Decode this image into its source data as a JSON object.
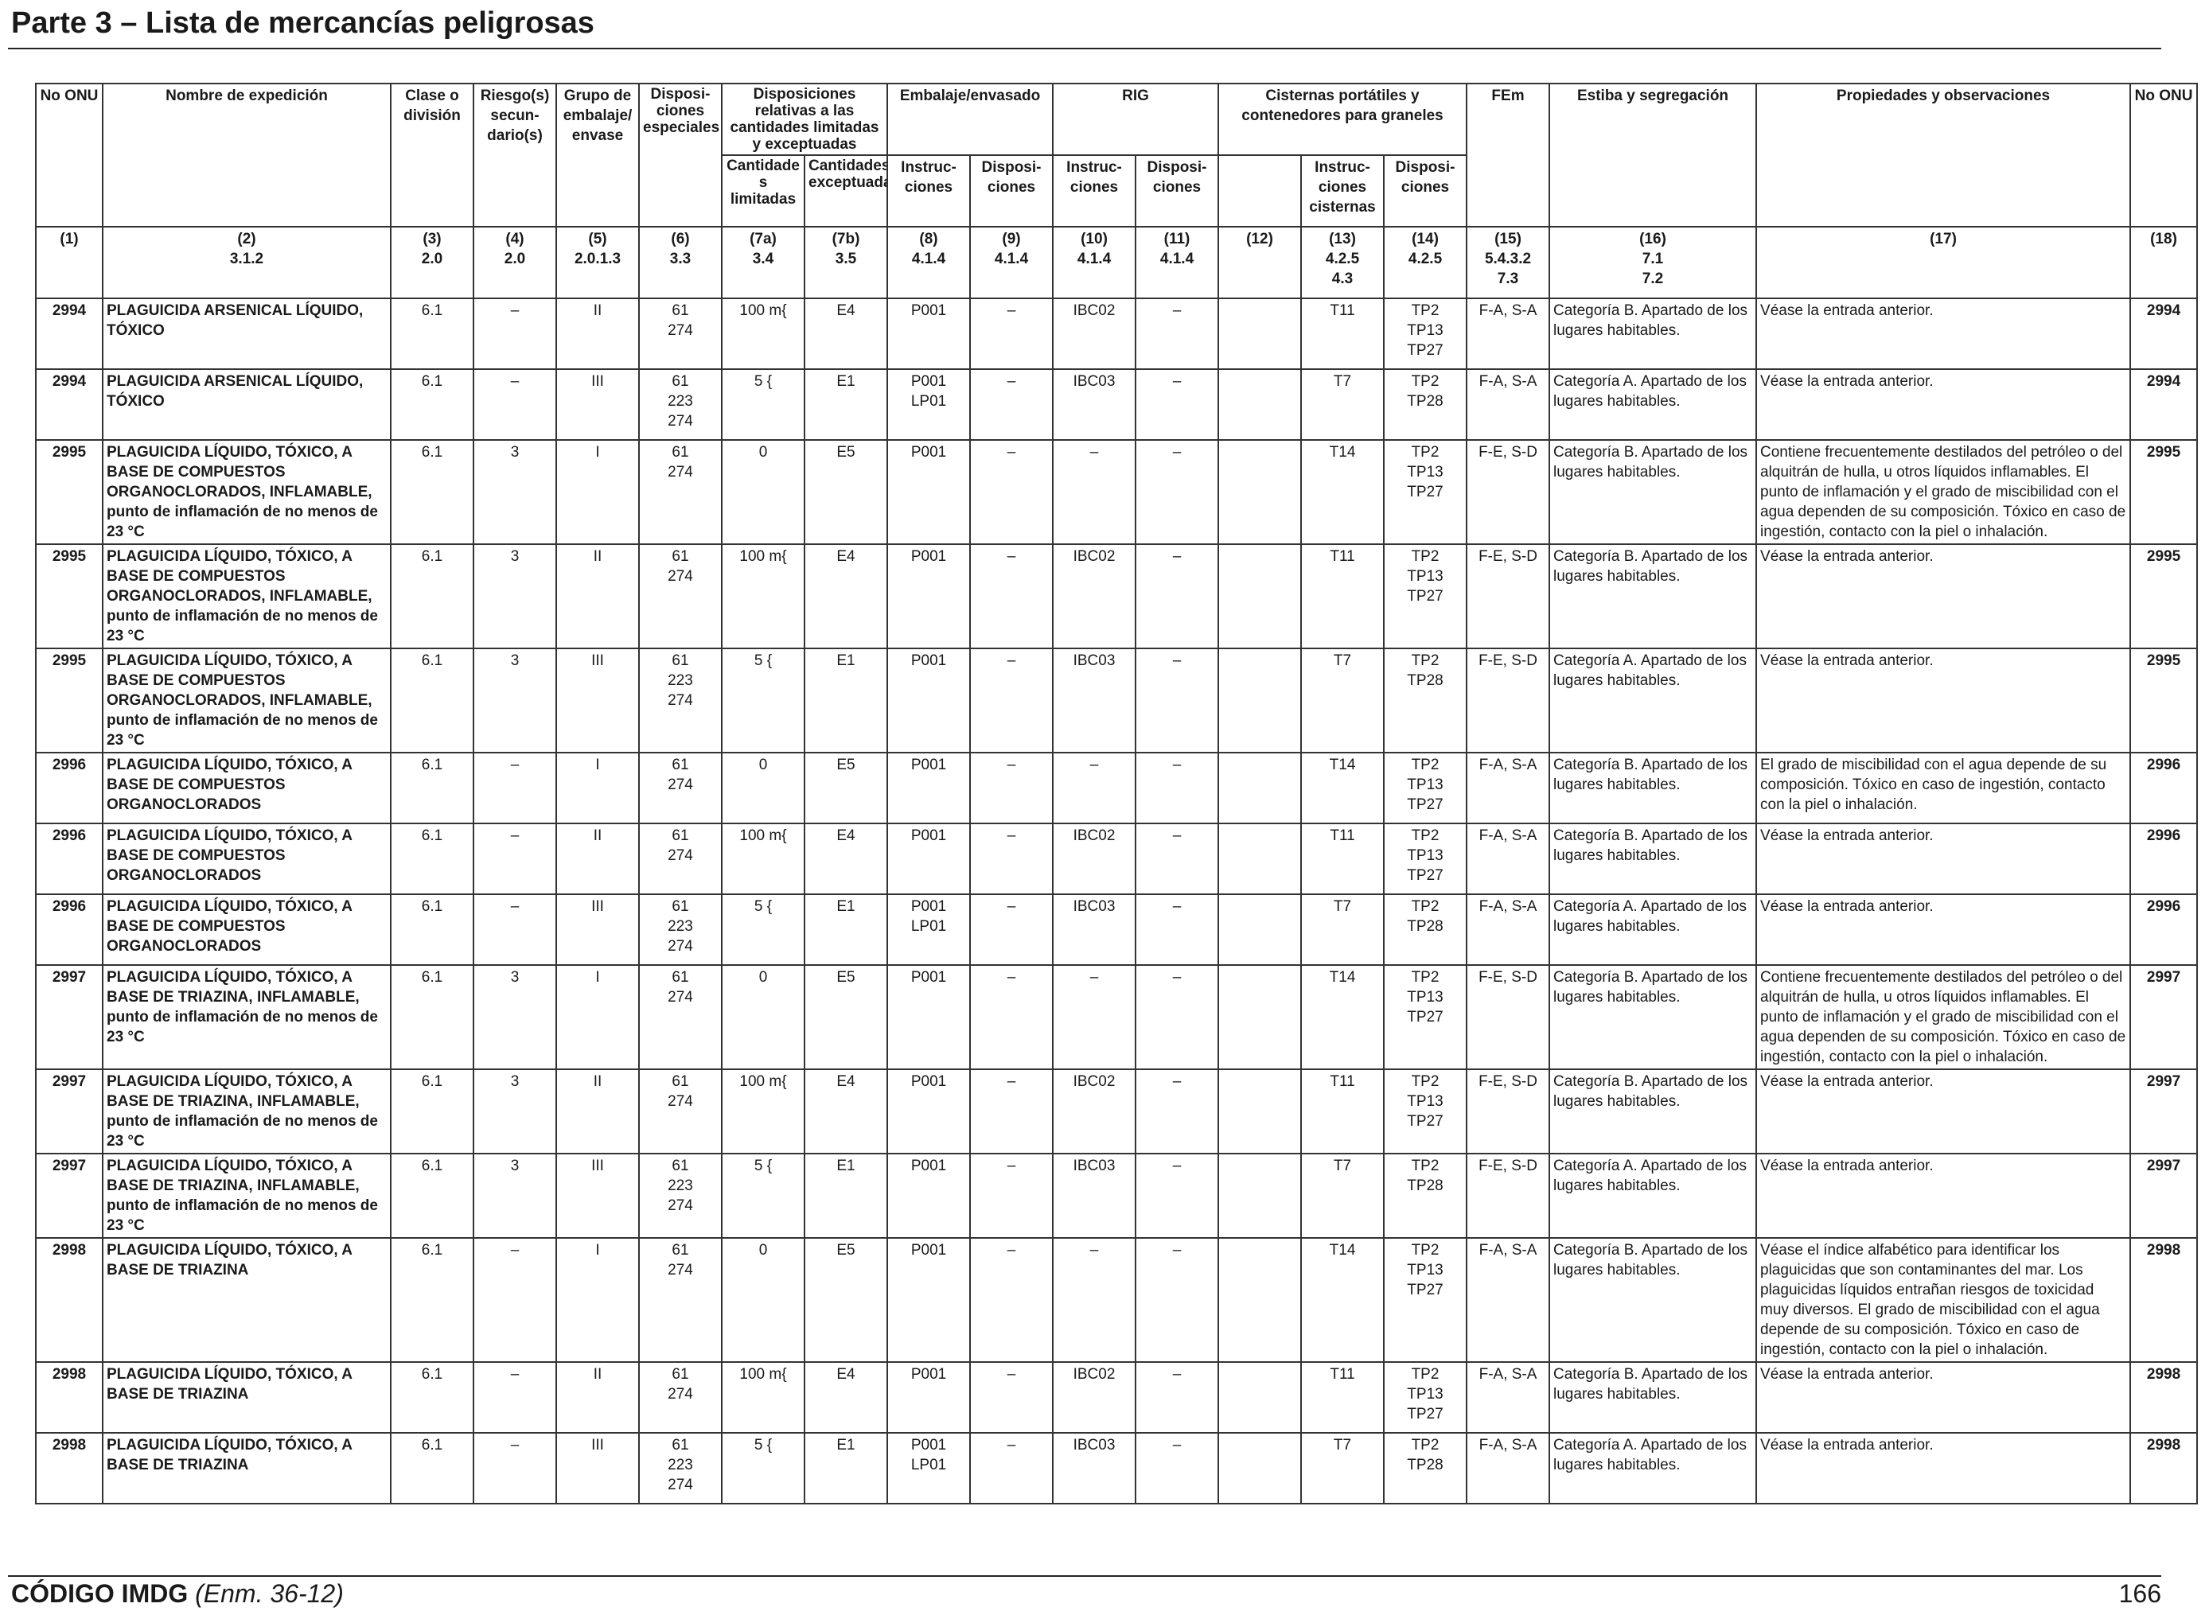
{
  "header": {
    "title": "Parte 3 – Lista de mercancías peligrosas"
  },
  "footer": {
    "code": "CÓDIGO IMDG",
    "edition": "(Enm. 36-12)",
    "page_number": "166"
  },
  "columns": {
    "no_onu": "No ONU",
    "nombre": "Nombre de expedición",
    "clase": "Clase o división",
    "riesgo": "Riesgo(s) secun- dario(s)",
    "grupo": "Grupo de embalaje/ envase",
    "dispos": "Disposi- ciones especiales",
    "cantidades": "Disposiciones relativas a las cantidades limitadas y exceptuadas",
    "cant_lim": "Cantidade s limitadas",
    "cant_exc": "Cantidades exceptuadas",
    "embalaje": "Embalaje/envasado",
    "emb_instr": "Instruc- ciones",
    "emb_dispos": "Disposi- ciones",
    "rig": "RIG",
    "rig_instr": "Instruc- ciones",
    "rig_dispos": "Disposi- ciones",
    "cisternas": "Cisternas portátiles y contenedores para graneles",
    "cist_instr": "Instruc- ciones cisternas",
    "cist_dispos": "Disposi- ciones",
    "fem": "FEm",
    "estiba": "Estiba y segregación",
    "propiedades": "Propiedades y observaciones",
    "no_onu_right": "No ONU"
  },
  "column_numbers": [
    [
      "(1)"
    ],
    [
      "(2)",
      "3.1.2"
    ],
    [
      "(3)",
      "2.0"
    ],
    [
      "(4)",
      "2.0"
    ],
    [
      "(5)",
      "2.0.1.3"
    ],
    [
      "(6)",
      "3.3"
    ],
    [
      "(7a)",
      "3.4"
    ],
    [
      "(7b)",
      "3.5"
    ],
    [
      "(8)",
      "4.1.4"
    ],
    [
      "(9)",
      "4.1.4"
    ],
    [
      "(10)",
      "4.1.4"
    ],
    [
      "(11)",
      "4.1.4"
    ],
    [
      "(12)"
    ],
    [
      "(13)",
      "4.2.5",
      "4.3"
    ],
    [
      "(14)",
      "4.2.5"
    ],
    [
      "(15)",
      "5.4.3.2",
      "7.3"
    ],
    [
      "(16)",
      "7.1",
      "7.2"
    ],
    [
      "(17)"
    ],
    [
      "(18)"
    ]
  ],
  "rows": [
    {
      "un": "2994",
      "name": "PLAGUICIDA ARSENICAL LÍQUIDO, TÓXICO",
      "cls": "6.1",
      "risk": "–",
      "pg": "II",
      "sp": [
        "61",
        "274"
      ],
      "lq": "100 m{",
      "eq": "E4",
      "pi": [
        "P001"
      ],
      "pp": "–",
      "ibc": "IBC02",
      "ibcp": "–",
      "c12": "",
      "tank": "T11",
      "tp": [
        "TP2",
        "TP13",
        "TP27"
      ],
      "fem": "F-A, S-A",
      "stow": "Categoría B. Apartado de los lugares habitables.",
      "prop": "Véase la entrada anterior.",
      "un2": "2994"
    },
    {
      "un": "2994",
      "name": "PLAGUICIDA ARSENICAL LÍQUIDO, TÓXICO",
      "cls": "6.1",
      "risk": "–",
      "pg": "III",
      "sp": [
        "61",
        "223",
        "274"
      ],
      "lq": "5 {",
      "eq": "E1",
      "pi": [
        "P001",
        "LP01"
      ],
      "pp": "–",
      "ibc": "IBC03",
      "ibcp": "–",
      "c12": "",
      "tank": "T7",
      "tp": [
        "TP2",
        "TP28"
      ],
      "fem": "F-A, S-A",
      "stow": "Categoría A. Apartado de los lugares habitables.",
      "prop": "Véase la entrada anterior.",
      "un2": "2994"
    },
    {
      "un": "2995",
      "name": "PLAGUICIDA LÍQUIDO, TÓXICO, A BASE DE COMPUESTOS ORGANOCLORADOS, INFLAMABLE, punto de inflamación de no menos de 23 °C",
      "cls": "6.1",
      "risk": "3",
      "pg": "I",
      "sp": [
        "61",
        "274"
      ],
      "lq": "0",
      "eq": "E5",
      "pi": [
        "P001"
      ],
      "pp": "–",
      "ibc": "–",
      "ibcp": "–",
      "c12": "",
      "tank": "T14",
      "tp": [
        "TP2",
        "TP13",
        "TP27"
      ],
      "fem": "F-E, S-D",
      "stow": "Categoría B. Apartado de los lugares habitables.",
      "prop": "Contiene frecuentemente destilados del petróleo o del alquitrán de hulla, u otros líquidos inflamables. El punto de inflamación y el grado de miscibilidad con el agua dependen de su composición. Tóxico en caso de ingestión, contacto con la piel o inhalación.",
      "un2": "2995"
    },
    {
      "un": "2995",
      "name": "PLAGUICIDA LÍQUIDO, TÓXICO, A BASE DE COMPUESTOS ORGANOCLORADOS, INFLAMABLE, punto de inflamación de no menos de 23 °C",
      "cls": "6.1",
      "risk": "3",
      "pg": "II",
      "sp": [
        "61",
        "274"
      ],
      "lq": "100 m{",
      "eq": "E4",
      "pi": [
        "P001"
      ],
      "pp": "–",
      "ibc": "IBC02",
      "ibcp": "–",
      "c12": "",
      "tank": "T11",
      "tp": [
        "TP2",
        "TP13",
        "TP27"
      ],
      "fem": "F-E, S-D",
      "stow": "Categoría B. Apartado de los lugares habitables.",
      "prop": "Véase la entrada anterior.",
      "un2": "2995"
    },
    {
      "un": "2995",
      "name": "PLAGUICIDA LÍQUIDO, TÓXICO, A BASE DE COMPUESTOS ORGANOCLORADOS, INFLAMABLE, punto de inflamación de no menos de 23 °C",
      "cls": "6.1",
      "risk": "3",
      "pg": "III",
      "sp": [
        "61",
        "223",
        "274"
      ],
      "lq": "5 {",
      "eq": "E1",
      "pi": [
        "P001"
      ],
      "pp": "–",
      "ibc": "IBC03",
      "ibcp": "–",
      "c12": "",
      "tank": "T7",
      "tp": [
        "TP2",
        "TP28"
      ],
      "fem": "F-E, S-D",
      "stow": "Categoría A. Apartado de los lugares habitables.",
      "prop": "Véase la entrada anterior.",
      "un2": "2995"
    },
    {
      "un": "2996",
      "name": "PLAGUICIDA LÍQUIDO, TÓXICO, A BASE DE COMPUESTOS ORGANOCLORADOS",
      "cls": "6.1",
      "risk": "–",
      "pg": "I",
      "sp": [
        "61",
        "274"
      ],
      "lq": "0",
      "eq": "E5",
      "pi": [
        "P001"
      ],
      "pp": "–",
      "ibc": "–",
      "ibcp": "–",
      "c12": "",
      "tank": "T14",
      "tp": [
        "TP2",
        "TP13",
        "TP27"
      ],
      "fem": "F-A, S-A",
      "stow": "Categoría B. Apartado de los lugares habitables.",
      "prop": "El grado de miscibilidad con el agua depende de su composición. Tóxico en caso de ingestión, contacto con la piel o inhalación.",
      "un2": "2996"
    },
    {
      "un": "2996",
      "name": "PLAGUICIDA LÍQUIDO, TÓXICO, A BASE DE COMPUESTOS ORGANOCLORADOS",
      "cls": "6.1",
      "risk": "–",
      "pg": "II",
      "sp": [
        "61",
        "274"
      ],
      "lq": "100 m{",
      "eq": "E4",
      "pi": [
        "P001"
      ],
      "pp": "–",
      "ibc": "IBC02",
      "ibcp": "–",
      "c12": "",
      "tank": "T11",
      "tp": [
        "TP2",
        "TP13",
        "TP27"
      ],
      "fem": "F-A, S-A",
      "stow": "Categoría B. Apartado de los lugares habitables.",
      "prop": "Véase la entrada anterior.",
      "un2": "2996"
    },
    {
      "un": "2996",
      "name": "PLAGUICIDA LÍQUIDO, TÓXICO, A BASE DE COMPUESTOS ORGANOCLORADOS",
      "cls": "6.1",
      "risk": "–",
      "pg": "III",
      "sp": [
        "61",
        "223",
        "274"
      ],
      "lq": "5 {",
      "eq": "E1",
      "pi": [
        "P001",
        "LP01"
      ],
      "pp": "–",
      "ibc": "IBC03",
      "ibcp": "–",
      "c12": "",
      "tank": "T7",
      "tp": [
        "TP2",
        "TP28"
      ],
      "fem": "F-A, S-A",
      "stow": "Categoría A. Apartado de los lugares habitables.",
      "prop": "Véase la entrada anterior.",
      "un2": "2996"
    },
    {
      "un": "2997",
      "name": "PLAGUICIDA LÍQUIDO, TÓXICO, A BASE DE TRIAZINA, INFLAMABLE, punto de inflamación de no menos de 23 °C",
      "cls": "6.1",
      "risk": "3",
      "pg": "I",
      "sp": [
        "61",
        "274"
      ],
      "lq": "0",
      "eq": "E5",
      "pi": [
        "P001"
      ],
      "pp": "–",
      "ibc": "–",
      "ibcp": "–",
      "c12": "",
      "tank": "T14",
      "tp": [
        "TP2",
        "TP13",
        "TP27"
      ],
      "fem": "F-E, S-D",
      "stow": "Categoría B. Apartado de los lugares habitables.",
      "prop": "Contiene frecuentemente destilados del petróleo o del alquitrán de hulla, u otros líquidos inflamables. El punto de inflamación y el grado de miscibilidad con el agua dependen de su composición. Tóxico en caso de ingestión, contacto con la piel o inhalación.",
      "un2": "2997"
    },
    {
      "un": "2997",
      "name": "PLAGUICIDA LÍQUIDO, TÓXICO, A BASE DE TRIAZINA, INFLAMABLE, punto de inflamación de no menos de 23 °C",
      "cls": "6.1",
      "risk": "3",
      "pg": "II",
      "sp": [
        "61",
        "274"
      ],
      "lq": "100 m{",
      "eq": "E4",
      "pi": [
        "P001"
      ],
      "pp": "–",
      "ibc": "IBC02",
      "ibcp": "–",
      "c12": "",
      "tank": "T11",
      "tp": [
        "TP2",
        "TP13",
        "TP27"
      ],
      "fem": "F-E, S-D",
      "stow": "Categoría B. Apartado de los lugares habitables.",
      "prop": "Véase la entrada anterior.",
      "un2": "2997"
    },
    {
      "un": "2997",
      "name": "PLAGUICIDA LÍQUIDO, TÓXICO, A BASE DE TRIAZINA, INFLAMABLE, punto de inflamación de no menos de 23 °C",
      "cls": "6.1",
      "risk": "3",
      "pg": "III",
      "sp": [
        "61",
        "223",
        "274"
      ],
      "lq": "5 {",
      "eq": "E1",
      "pi": [
        "P001"
      ],
      "pp": "–",
      "ibc": "IBC03",
      "ibcp": "–",
      "c12": "",
      "tank": "T7",
      "tp": [
        "TP2",
        "TP28"
      ],
      "fem": "F-E, S-D",
      "stow": "Categoría A. Apartado de los lugares habitables.",
      "prop": "Véase la entrada anterior.",
      "un2": "2997"
    },
    {
      "un": "2998",
      "name": "PLAGUICIDA LÍQUIDO, TÓXICO, A BASE DE TRIAZINA",
      "cls": "6.1",
      "risk": "–",
      "pg": "I",
      "sp": [
        "61",
        "274"
      ],
      "lq": "0",
      "eq": "E5",
      "pi": [
        "P001"
      ],
      "pp": "–",
      "ibc": "–",
      "ibcp": "–",
      "c12": "",
      "tank": "T14",
      "tp": [
        "TP2",
        "TP13",
        "TP27"
      ],
      "fem": "F-A, S-A",
      "stow": "Categoría B. Apartado de los lugares habitables.",
      "prop": "Véase el índice alfabético para identificar los plaguicidas que son contaminantes del mar. Los plaguicidas líquidos entrañan riesgos de toxicidad muy diversos. El grado de miscibilidad con el agua depende de su composición. Tóxico en caso de ingestión, contacto con la piel o inhalación.",
      "un2": "2998"
    },
    {
      "un": "2998",
      "name": "PLAGUICIDA LÍQUIDO, TÓXICO, A BASE DE TRIAZINA",
      "cls": "6.1",
      "risk": "–",
      "pg": "II",
      "sp": [
        "61",
        "274"
      ],
      "lq": "100 m{",
      "eq": "E4",
      "pi": [
        "P001"
      ],
      "pp": "–",
      "ibc": "IBC02",
      "ibcp": "–",
      "c12": "",
      "tank": "T11",
      "tp": [
        "TP2",
        "TP13",
        "TP27"
      ],
      "fem": "F-A, S-A",
      "stow": "Categoría B. Apartado de los lugares habitables.",
      "prop": "Véase la entrada anterior.",
      "un2": "2998"
    },
    {
      "un": "2998",
      "name": "PLAGUICIDA LÍQUIDO, TÓXICO, A BASE DE TRIAZINA",
      "cls": "6.1",
      "risk": "–",
      "pg": "III",
      "sp": [
        "61",
        "223",
        "274"
      ],
      "lq": "5 {",
      "eq": "E1",
      "pi": [
        "P001",
        "LP01"
      ],
      "pp": "–",
      "ibc": "IBC03",
      "ibcp": "–",
      "c12": "",
      "tank": "T7",
      "tp": [
        "TP2",
        "TP28"
      ],
      "fem": "F-A, S-A",
      "stow": "Categoría A. Apartado de los lugares habitables.",
      "prop": "Véase la entrada anterior.",
      "un2": "2998"
    }
  ]
}
